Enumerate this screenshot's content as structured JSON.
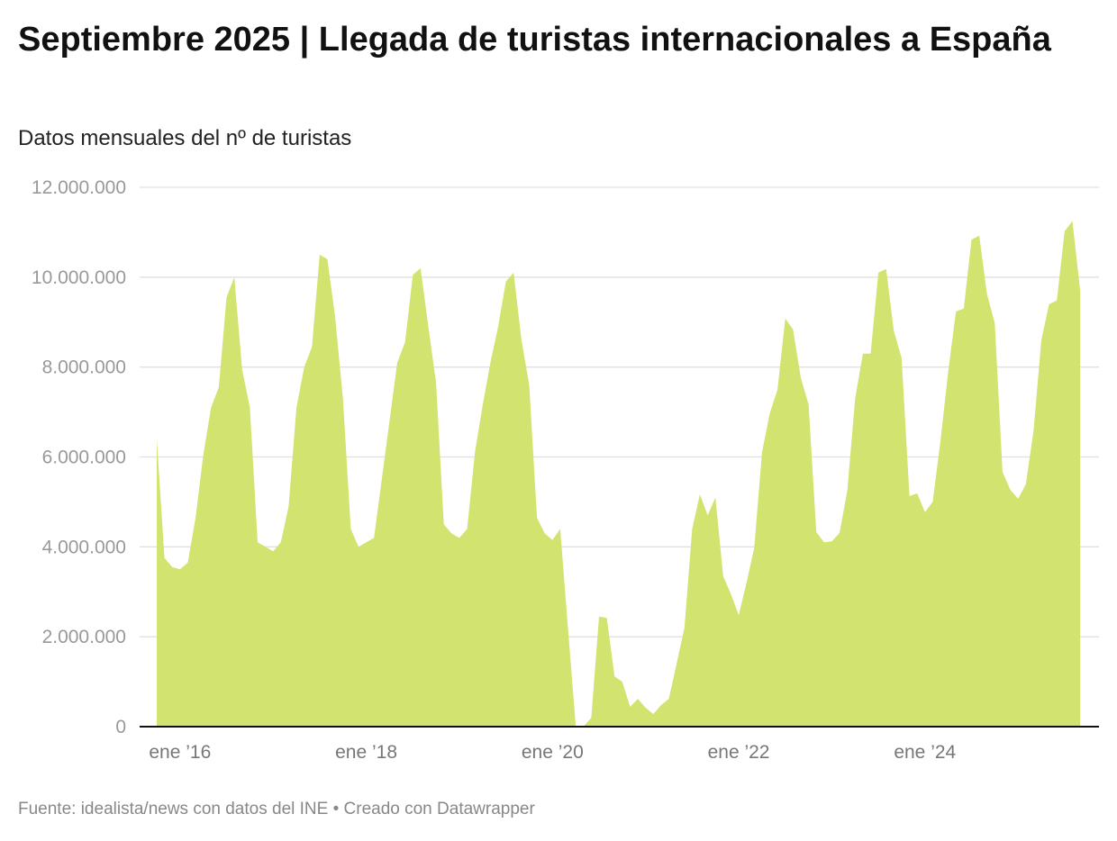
{
  "title": "Septiembre 2025 | Llegada de turistas internacionales a España",
  "subtitle": "Datos mensuales del nº de turistas",
  "footer": "Fuente: idealista/news con datos del INE • Creado con Datawrapper",
  "chart_data": {
    "type": "area",
    "title": "Septiembre 2025 | Llegada de turistas internacionales a España",
    "subtitle": "Datos mensuales del nº de turistas",
    "xlabel": "",
    "ylabel": "",
    "ylim": [
      0,
      12000000
    ],
    "grid": true,
    "color": "#d3e36f",
    "y_ticks": [
      0,
      2000000,
      4000000,
      6000000,
      8000000,
      10000000,
      12000000
    ],
    "y_tick_labels": [
      "0",
      "2.000.000",
      "4.000.000",
      "6.000.000",
      "8.000.000",
      "10.000.000",
      "12.000.000"
    ],
    "x_ticks": [
      "2016-01",
      "2018-01",
      "2020-01",
      "2022-01",
      "2024-01"
    ],
    "x_tick_labels": [
      "ene ’16",
      "ene ’18",
      "ene ’20",
      "ene ’22",
      "ene ’24"
    ],
    "x_start": "2015-10",
    "values": [
      6400000,
      3750000,
      3550000,
      3500000,
      3650000,
      4650000,
      6050000,
      7100000,
      7550000,
      9550000,
      10000000,
      7950000,
      7100000,
      4100000,
      4000000,
      3900000,
      4100000,
      4900000,
      7100000,
      8000000,
      8450000,
      10500000,
      10400000,
      9100000,
      7300000,
      4400000,
      4000000,
      4100000,
      4200000,
      5500000,
      6800000,
      8100000,
      8550000,
      10050000,
      10200000,
      8900000,
      7650000,
      4500000,
      4300000,
      4200000,
      4400000,
      6100000,
      7150000,
      8100000,
      8900000,
      9900000,
      10100000,
      8600000,
      7600000,
      4650000,
      4300000,
      4150000,
      4400000,
      2200000,
      0,
      0,
      200000,
      2450000,
      2420000,
      1120000,
      1000000,
      440000,
      620000,
      420000,
      280000,
      480000,
      620000,
      1400000,
      2200000,
      4400000,
      5170000,
      4700000,
      5100000,
      3350000,
      2950000,
      2480000,
      3200000,
      3980000,
      6100000,
      6970000,
      7500000,
      9080000,
      8840000,
      7760000,
      7170000,
      4330000,
      4100000,
      4120000,
      4310000,
      5250000,
      7300000,
      8300000,
      8300000,
      10100000,
      10180000,
      8800000,
      8200000,
      5130000,
      5190000,
      4770000,
      5000000,
      6350000,
      7900000,
      9240000,
      9300000,
      10840000,
      10920000,
      9620000,
      8980000,
      5670000,
      5270000,
      5070000,
      5390000,
      6590000,
      8600000,
      9400000,
      9480000,
      11020000,
      11250000,
      9700000
    ]
  }
}
